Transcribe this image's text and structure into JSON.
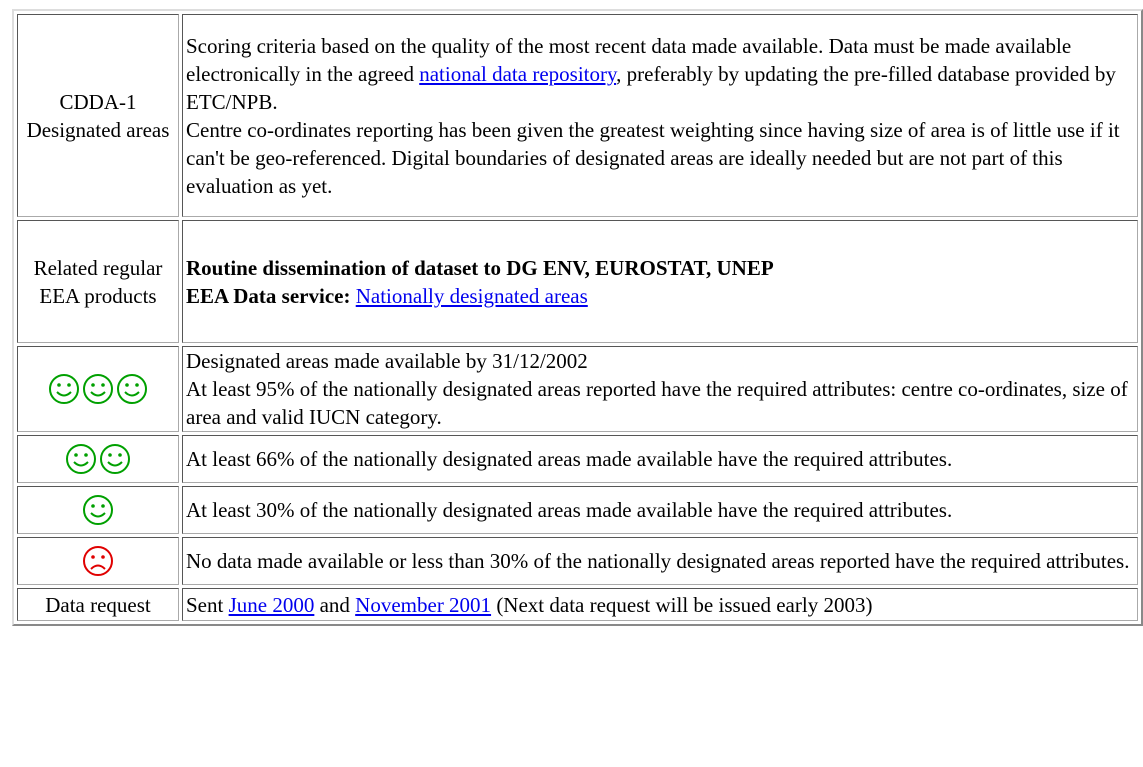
{
  "rows": [
    {
      "label": "CDDA-1 Designated areas",
      "text": [
        "Scoring criteria based on the quality of the most recent data made available. Data must be made available electronically in the agreed ",
        "national data repository",
        ", preferably by updating the pre-filled database provided by ETC/NPB.",
        "Centre co-ordinates reporting has been given the greatest weighting since having size of area is of little use if it can't be geo-referenced. Digital boundaries of designated areas are ideally needed but are not part of this evaluation as yet."
      ]
    },
    {
      "label": "Related regular EEA products",
      "text": [
        "Routine dissemination of dataset to DG ENV, EUROSTAT, UNEP",
        "EEA Data service:",
        "Nationally designated areas"
      ]
    },
    {
      "text": [
        "Designated areas made available by 31/12/2002",
        "At least 95% of the nationally designated areas reported have the required attributes: centre co-ordinates, size of area and valid IUCN category."
      ]
    },
    {
      "text": [
        "At least 66% of the nationally designated areas made available have the required attributes."
      ]
    },
    {
      "text": [
        "At least 30% of the nationally designated areas made available have the required attributes."
      ]
    },
    {
      "text": [
        "No data made available or less than 30% of the nationally designated areas reported have the required attributes."
      ]
    },
    {
      "label": "Data request",
      "text": [
        "Sent ",
        "June 2000",
        " and ",
        "November 2001",
        " (Next data request will be issued early 2003)"
      ]
    }
  ]
}
